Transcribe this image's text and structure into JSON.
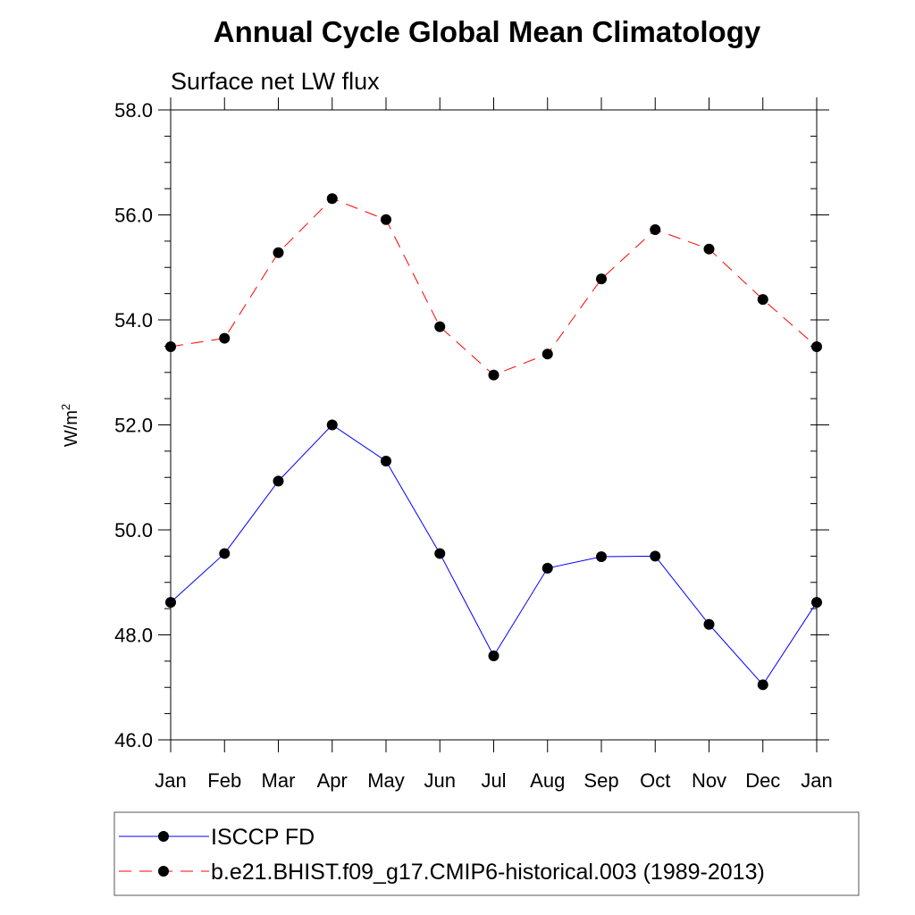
{
  "chart_data": {
    "type": "line",
    "title": "Annual Cycle Global Mean Climatology",
    "subtitle": "Surface net LW flux",
    "xlabel": "",
    "ylabel": "W/m",
    "ylabel_superscript": "2",
    "categories": [
      "Jan",
      "Feb",
      "Mar",
      "Apr",
      "May",
      "Jun",
      "Jul",
      "Aug",
      "Sep",
      "Oct",
      "Nov",
      "Dec",
      "Jan"
    ],
    "ylim": [
      46.0,
      58.0
    ],
    "yticks": [
      "46.0",
      "48.0",
      "50.0",
      "52.0",
      "54.0",
      "56.0",
      "58.0"
    ],
    "yticks_values": [
      46,
      48,
      50,
      52,
      54,
      56,
      58
    ],
    "y_minor_step": 0.5,
    "grid": false,
    "legend_position": "bottom",
    "series": [
      {
        "name": "ISCCP FD",
        "color": "#0000ff",
        "dash": "solid",
        "marker": "circle",
        "values": [
          48.62,
          49.55,
          50.93,
          52.0,
          51.31,
          49.55,
          47.6,
          49.27,
          49.49,
          49.5,
          48.2,
          47.05,
          48.62
        ]
      },
      {
        "name": "b.e21.BHIST.f09_g17.CMIP6-historical.003 (1989-2013)",
        "color": "#ff0000",
        "dash": "dashed",
        "marker": "circle",
        "values": [
          53.49,
          53.65,
          55.28,
          56.31,
          55.91,
          53.87,
          52.95,
          53.35,
          54.78,
          55.72,
          55.35,
          54.39,
          53.49
        ]
      }
    ]
  }
}
